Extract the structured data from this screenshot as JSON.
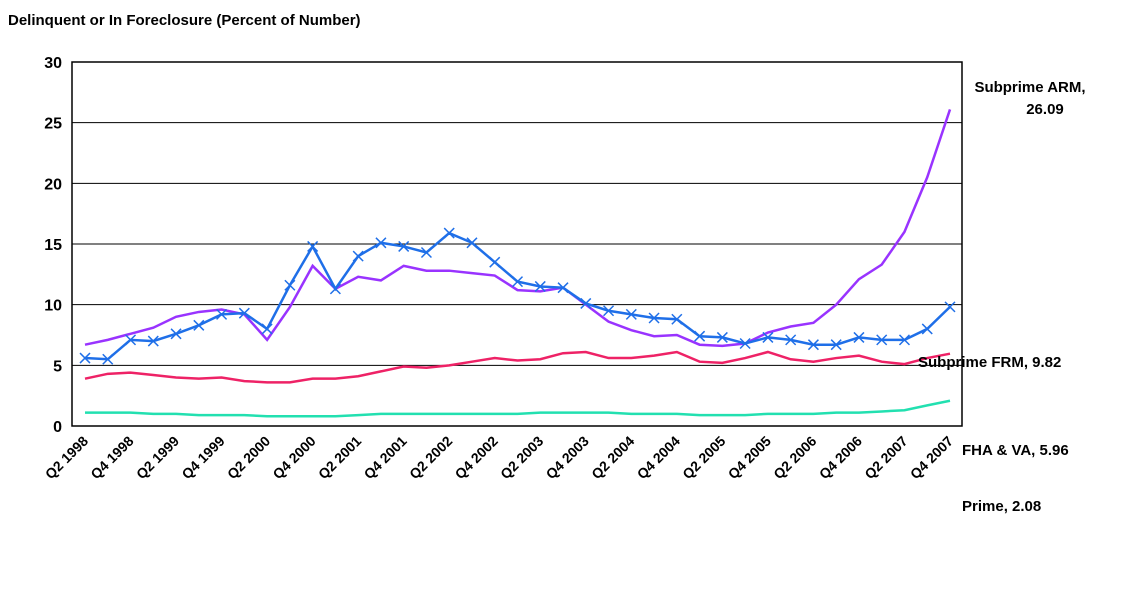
{
  "chart_data": {
    "type": "line",
    "title": "Delinquent or In Foreclosure (Percent of Number)",
    "categories": [
      "Q2 1998",
      null,
      "Q4 1998",
      null,
      "Q2 1999",
      null,
      "Q4 1999",
      null,
      "Q2 2000",
      null,
      "Q4 2000",
      null,
      "Q2 2001",
      null,
      "Q4 2001",
      null,
      "Q2 2002",
      null,
      "Q4 2002",
      null,
      "Q2 2003",
      null,
      "Q4 2003",
      null,
      "Q2 2004",
      null,
      "Q4 2004",
      null,
      "Q2 2005",
      null,
      "Q4 2005",
      null,
      "Q2 2006",
      null,
      "Q4 2006",
      null,
      "Q2 2007",
      null,
      "Q4 2007"
    ],
    "series": [
      {
        "name": "Subprime ARM",
        "color": "#9933ff",
        "values": [
          6.7,
          7.1,
          7.6,
          8.1,
          9.0,
          9.4,
          9.6,
          9.2,
          7.1,
          9.8,
          13.2,
          11.3,
          12.3,
          12.0,
          13.2,
          12.8,
          12.8,
          12.6,
          12.4,
          11.2,
          11.1,
          11.4,
          10.0,
          8.6,
          7.9,
          7.4,
          7.5,
          6.7,
          6.6,
          6.8,
          7.7,
          8.2,
          8.5,
          10.0,
          12.1,
          13.3,
          16.0,
          20.5,
          26.09
        ]
      },
      {
        "name": "Subprime FRM",
        "color": "#1f6fe8",
        "marker": "x",
        "values": [
          5.6,
          5.5,
          7.1,
          7.0,
          7.6,
          8.3,
          9.2,
          9.3,
          8.0,
          11.6,
          14.8,
          11.3,
          14.0,
          15.1,
          14.8,
          14.3,
          15.9,
          15.1,
          13.5,
          11.9,
          11.5,
          11.4,
          10.1,
          9.5,
          9.2,
          8.9,
          8.8,
          7.4,
          7.3,
          6.8,
          7.3,
          7.1,
          6.7,
          6.7,
          7.3,
          7.1,
          7.1,
          8.0,
          9.82
        ]
      },
      {
        "name": "FHA & VA",
        "color": "#ee2266",
        "values": [
          3.9,
          4.3,
          4.4,
          4.2,
          4.0,
          3.9,
          4.0,
          3.7,
          3.6,
          3.6,
          3.9,
          3.9,
          4.1,
          4.5,
          4.9,
          4.8,
          5.0,
          5.3,
          5.6,
          5.4,
          5.5,
          6.0,
          6.1,
          5.6,
          5.6,
          5.8,
          6.1,
          5.3,
          5.2,
          5.6,
          6.1,
          5.5,
          5.3,
          5.6,
          5.8,
          5.3,
          5.1,
          5.6,
          5.96
        ]
      },
      {
        "name": "Prime",
        "color": "#22e0b0",
        "values": [
          1.1,
          1.1,
          1.1,
          1.0,
          1.0,
          0.9,
          0.9,
          0.9,
          0.8,
          0.8,
          0.8,
          0.8,
          0.9,
          1.0,
          1.0,
          1.0,
          1.0,
          1.0,
          1.0,
          1.0,
          1.1,
          1.1,
          1.1,
          1.1,
          1.0,
          1.0,
          1.0,
          0.9,
          0.9,
          0.9,
          1.0,
          1.0,
          1.0,
          1.1,
          1.1,
          1.2,
          1.3,
          1.7,
          2.08
        ]
      }
    ],
    "annotations": [
      [
        "Subprime ARM,",
        "26.09"
      ],
      [
        "Subprime FRM, 9.82"
      ],
      [
        "FHA & VA, 5.96"
      ],
      [
        "Prime, 2.08"
      ]
    ],
    "ylim": [
      0,
      30
    ],
    "yticks": [
      0,
      5,
      10,
      15,
      20,
      25,
      30
    ],
    "grid": true
  }
}
